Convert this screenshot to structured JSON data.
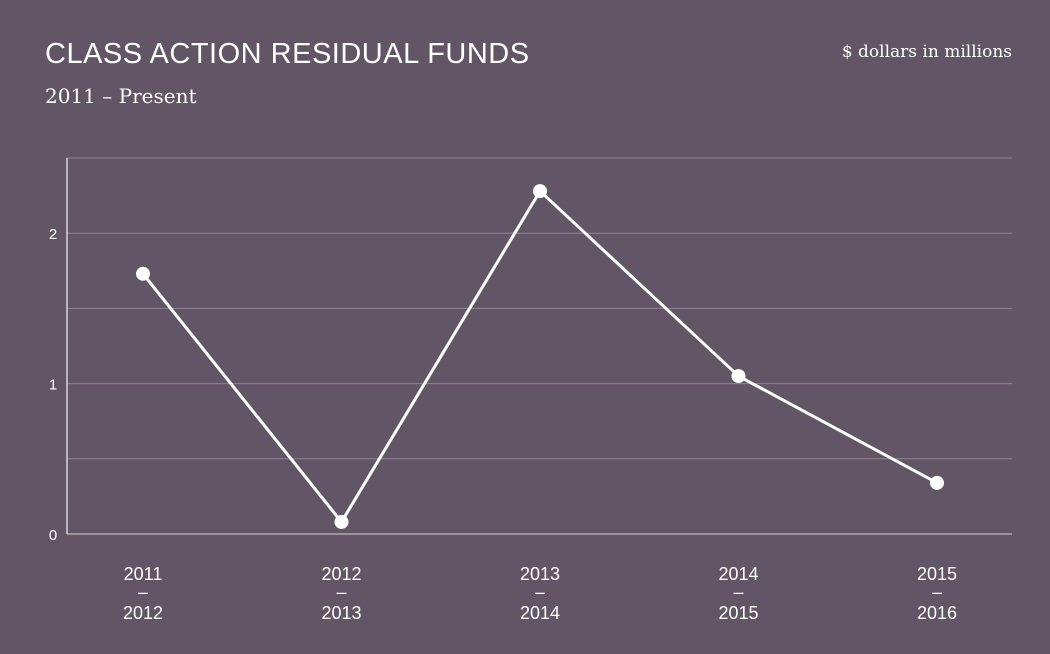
{
  "header": {
    "title": "CLASS ACTION RESIDUAL FUNDS",
    "subtitle": "2011 – Present",
    "units": "$ dollars in millions"
  },
  "colors": {
    "background": "#625566",
    "line": "#ffffff",
    "grid": "#8e8393",
    "axis": "#d8d2da"
  },
  "chart_data": {
    "type": "line",
    "title": "CLASS ACTION RESIDUAL FUNDS",
    "subtitle": "2011 – Present",
    "ylabel": "$ dollars in millions",
    "categories": [
      [
        "2011",
        "–",
        "2012"
      ],
      [
        "2012",
        "–",
        "2013"
      ],
      [
        "2013",
        "–",
        "2014"
      ],
      [
        "2014",
        "–",
        "2015"
      ],
      [
        "2015",
        "–",
        "2016"
      ]
    ],
    "values": [
      1.73,
      0.08,
      2.28,
      1.05,
      0.34
    ],
    "ylim": [
      0,
      2.5
    ],
    "yticks": [
      0,
      1,
      2
    ],
    "grid_lines": [
      0,
      0.5,
      1,
      1.5,
      2,
      2.5
    ],
    "grid": true
  }
}
